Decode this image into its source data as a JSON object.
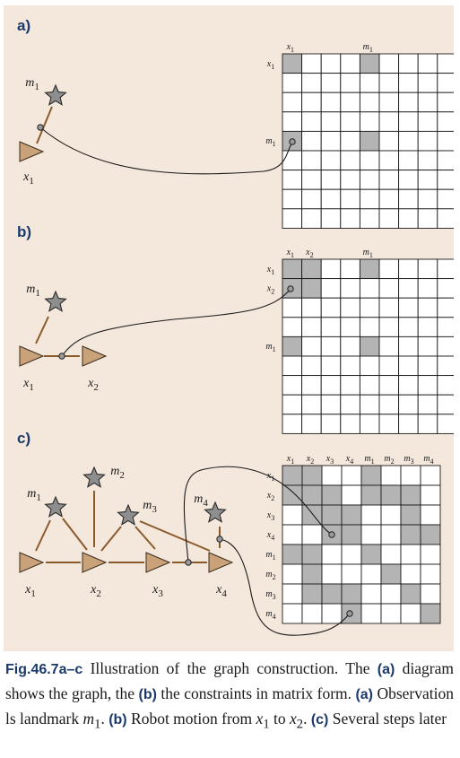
{
  "panels": [
    {
      "label": "a)",
      "nodes": [
        {
          "id": "m1",
          "kind": "landmark",
          "label": "m1"
        },
        {
          "id": "x1",
          "kind": "pose",
          "label": "x1"
        }
      ],
      "edges": [
        [
          "x1",
          "m1"
        ]
      ],
      "matrix": {
        "cols": [
          "x1",
          "",
          "",
          "",
          "m1",
          "",
          "",
          "",
          ""
        ],
        "rows": [
          "x1",
          "",
          "",
          "",
          "m1",
          "",
          "",
          "",
          ""
        ],
        "filled": [
          [
            0,
            0
          ],
          [
            0,
            4
          ],
          [
            4,
            0
          ],
          [
            4,
            4
          ]
        ]
      }
    },
    {
      "label": "b)",
      "nodes": [
        {
          "id": "m1",
          "kind": "landmark",
          "label": "m1"
        },
        {
          "id": "x1",
          "kind": "pose",
          "label": "x1"
        },
        {
          "id": "x2",
          "kind": "pose",
          "label": "x2"
        }
      ],
      "edges": [
        [
          "x1",
          "m1"
        ],
        [
          "x1",
          "x2"
        ]
      ],
      "matrix": {
        "cols": [
          "x1",
          "x2",
          "",
          "",
          "m1",
          "",
          "",
          "",
          ""
        ],
        "rows": [
          "x1",
          "x2",
          "",
          "",
          "m1",
          "",
          "",
          "",
          ""
        ],
        "filled": [
          [
            0,
            0
          ],
          [
            0,
            1
          ],
          [
            1,
            0
          ],
          [
            1,
            1
          ],
          [
            0,
            4
          ],
          [
            4,
            0
          ],
          [
            4,
            4
          ]
        ]
      }
    },
    {
      "label": "c)",
      "nodes": [
        {
          "id": "m1",
          "kind": "landmark",
          "label": "m1"
        },
        {
          "id": "m2",
          "kind": "landmark",
          "label": "m2"
        },
        {
          "id": "m3",
          "kind": "landmark",
          "label": "m3"
        },
        {
          "id": "m4",
          "kind": "landmark",
          "label": "m4"
        },
        {
          "id": "x1",
          "kind": "pose",
          "label": "x1"
        },
        {
          "id": "x2",
          "kind": "pose",
          "label": "x2"
        },
        {
          "id": "x3",
          "kind": "pose",
          "label": "x3"
        },
        {
          "id": "x4",
          "kind": "pose",
          "label": "x4"
        }
      ],
      "edges": [
        [
          "x1",
          "m1"
        ],
        [
          "x2",
          "m1"
        ],
        [
          "x2",
          "m2"
        ],
        [
          "x2",
          "m3"
        ],
        [
          "x3",
          "m3"
        ],
        [
          "x4",
          "m3"
        ],
        [
          "x4",
          "m4"
        ],
        [
          "x1",
          "x2"
        ],
        [
          "x2",
          "x3"
        ],
        [
          "x3",
          "x4"
        ]
      ],
      "matrix": {
        "cols": [
          "x1",
          "x2",
          "x3",
          "x4",
          "m1",
          "m2",
          "m3",
          "m4"
        ],
        "rows": [
          "x1",
          "x2",
          "x3",
          "x4",
          "m1",
          "m2",
          "m3",
          "m4"
        ],
        "filled": [
          [
            0,
            0
          ],
          [
            0,
            1
          ],
          [
            0,
            4
          ],
          [
            1,
            0
          ],
          [
            1,
            1
          ],
          [
            1,
            2
          ],
          [
            1,
            4
          ],
          [
            1,
            5
          ],
          [
            1,
            6
          ],
          [
            2,
            1
          ],
          [
            2,
            2
          ],
          [
            2,
            3
          ],
          [
            2,
            6
          ],
          [
            3,
            2
          ],
          [
            3,
            3
          ],
          [
            3,
            6
          ],
          [
            3,
            7
          ],
          [
            4,
            0
          ],
          [
            4,
            1
          ],
          [
            4,
            4
          ],
          [
            5,
            1
          ],
          [
            5,
            5
          ],
          [
            6,
            1
          ],
          [
            6,
            2
          ],
          [
            6,
            3
          ],
          [
            6,
            6
          ],
          [
            7,
            3
          ],
          [
            7,
            7
          ]
        ]
      }
    }
  ],
  "caption": {
    "fig": "Fig.46.7a–c",
    "t1": " Illustration of the graph construction. The ",
    "a1": "(a)",
    "t2": " diagram shows the graph, the ",
    "b1": "(b)",
    "t3": " the constraints in matrix form. ",
    "a2": "(a)",
    "t4": " Observation ls landmark ",
    "m1": "m",
    "m1sub": "1",
    "t5": ". ",
    "b2": "(b)",
    "t6": " Robot motion from ",
    "x1": "x",
    "x1sub": "1",
    "t7": " to ",
    "x2": "x",
    "x2sub": "2",
    "t8": ". ",
    "c1": "(c)",
    "t9": " Several steps later"
  },
  "colors": {
    "background": "#f4e7dc",
    "pose_fill": "#c9a27a",
    "landmark_fill": "#8e8e8e",
    "edge": "#8b5a2b",
    "cell_filled": "#b4b4b4",
    "label_blue": "#1b3a6b"
  }
}
